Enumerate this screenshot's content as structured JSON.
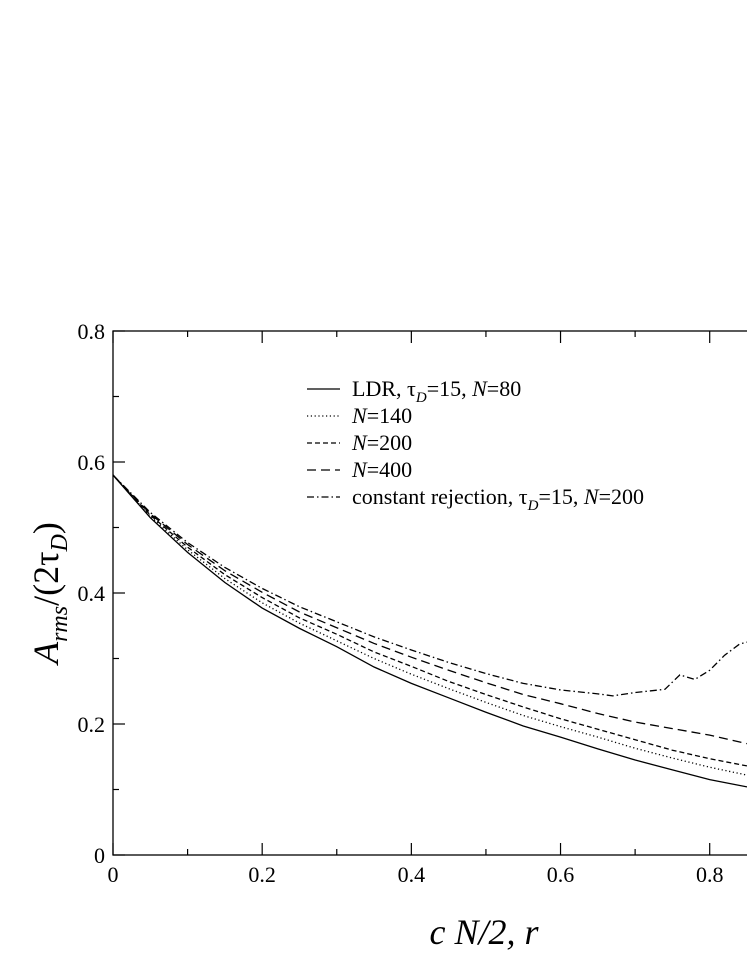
{
  "chart_data": {
    "type": "line",
    "title": "",
    "xlabel": "c N/2, r",
    "ylabel": "A_rms/(2τ_D)",
    "xlim": [
      0,
      0.85
    ],
    "ylim": [
      0,
      0.8
    ],
    "x_ticks": [
      0,
      0.2,
      0.4,
      0.6,
      0.8
    ],
    "x_tick_labels": [
      "0",
      "0.2",
      "0.4",
      "0.6",
      "0.8"
    ],
    "y_ticks": [
      0,
      0.2,
      0.4,
      0.6,
      0.8
    ],
    "y_tick_labels": [
      "0",
      "0.2",
      "0.4",
      "0.6",
      "0.8"
    ],
    "grid": false,
    "legend_position": "top-right",
    "series": [
      {
        "name": "LDR, τD=15, N=80",
        "dash": "solid",
        "x": [
          0,
          0.05,
          0.1,
          0.15,
          0.2,
          0.25,
          0.3,
          0.35,
          0.4,
          0.45,
          0.5,
          0.55,
          0.6,
          0.65,
          0.7,
          0.75,
          0.8,
          0.85
        ],
        "y": [
          0.58,
          0.515,
          0.462,
          0.416,
          0.377,
          0.346,
          0.318,
          0.287,
          0.262,
          0.24,
          0.218,
          0.197,
          0.18,
          0.162,
          0.145,
          0.13,
          0.115,
          0.104
        ]
      },
      {
        "name": "N=140",
        "dash": "dotted",
        "x": [
          0,
          0.05,
          0.1,
          0.15,
          0.2,
          0.25,
          0.3,
          0.35,
          0.4,
          0.45,
          0.5,
          0.55,
          0.6,
          0.65,
          0.7,
          0.75,
          0.8,
          0.85
        ],
        "y": [
          0.58,
          0.517,
          0.466,
          0.422,
          0.385,
          0.354,
          0.327,
          0.3,
          0.276,
          0.254,
          0.233,
          0.213,
          0.196,
          0.18,
          0.163,
          0.148,
          0.134,
          0.122
        ]
      },
      {
        "name": "N=200",
        "dash": "dashed-short",
        "x": [
          0,
          0.05,
          0.1,
          0.15,
          0.2,
          0.25,
          0.3,
          0.35,
          0.4,
          0.45,
          0.5,
          0.55,
          0.6,
          0.65,
          0.7,
          0.75,
          0.8,
          0.85
        ],
        "y": [
          0.58,
          0.519,
          0.47,
          0.428,
          0.393,
          0.362,
          0.337,
          0.31,
          0.288,
          0.265,
          0.245,
          0.226,
          0.208,
          0.192,
          0.176,
          0.16,
          0.147,
          0.136
        ]
      },
      {
        "name": "N=400",
        "dash": "dashed-long",
        "x": [
          0,
          0.05,
          0.1,
          0.15,
          0.2,
          0.25,
          0.3,
          0.35,
          0.4,
          0.45,
          0.5,
          0.55,
          0.6,
          0.65,
          0.7,
          0.75,
          0.8,
          0.85
        ],
        "y": [
          0.58,
          0.521,
          0.474,
          0.434,
          0.401,
          0.371,
          0.347,
          0.323,
          0.302,
          0.282,
          0.263,
          0.245,
          0.231,
          0.216,
          0.203,
          0.193,
          0.183,
          0.17
        ]
      },
      {
        "name": "constant rejection, τD=15, N=200",
        "dash": "dash-dot",
        "x": [
          0,
          0.05,
          0.1,
          0.15,
          0.2,
          0.25,
          0.3,
          0.35,
          0.4,
          0.45,
          0.5,
          0.55,
          0.6,
          0.65,
          0.67,
          0.7,
          0.74,
          0.76,
          0.78,
          0.8,
          0.82,
          0.84,
          0.85
        ],
        "y": [
          0.58,
          0.523,
          0.477,
          0.439,
          0.407,
          0.379,
          0.356,
          0.333,
          0.313,
          0.294,
          0.277,
          0.262,
          0.252,
          0.246,
          0.243,
          0.248,
          0.253,
          0.275,
          0.268,
          0.282,
          0.305,
          0.322,
          0.325
        ]
      }
    ]
  }
}
